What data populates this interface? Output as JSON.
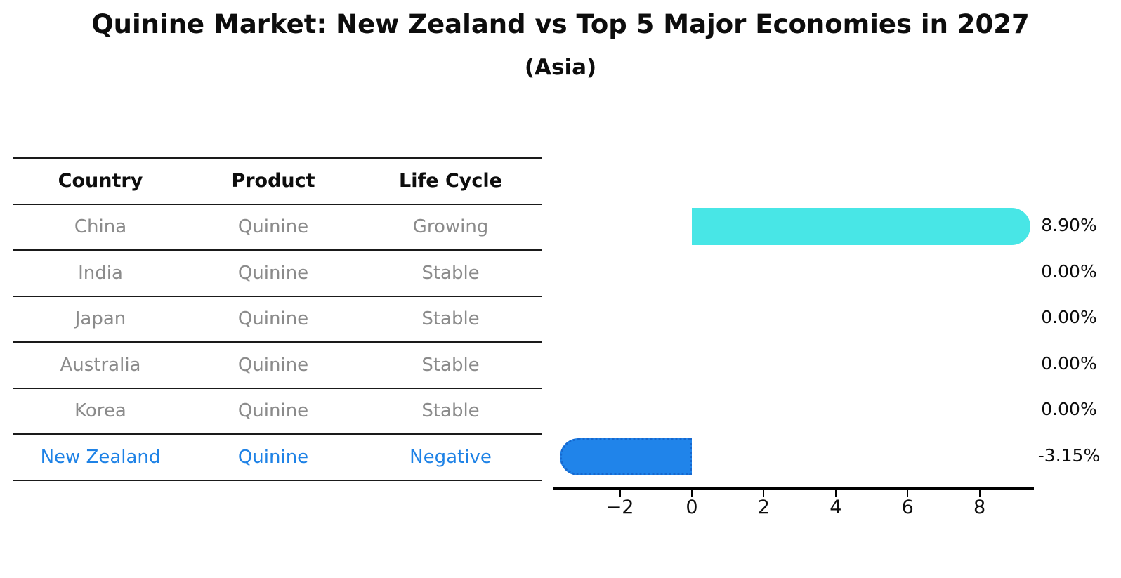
{
  "header": {
    "title": "Quinine Market: New Zealand vs Top 5 Major Economies in 2027",
    "subtitle": "(Asia)"
  },
  "table": {
    "columns": [
      "Country",
      "Product",
      "Life Cycle"
    ],
    "rows": [
      {
        "country": "China",
        "product": "Quinine",
        "life_cycle": "Growing",
        "highlight": false
      },
      {
        "country": "India",
        "product": "Quinine",
        "life_cycle": "Stable",
        "highlight": false
      },
      {
        "country": "Japan",
        "product": "Quinine",
        "life_cycle": "Stable",
        "highlight": false
      },
      {
        "country": "Australia",
        "product": "Quinine",
        "life_cycle": "Stable",
        "highlight": false
      },
      {
        "country": "Korea",
        "product": "Quinine",
        "life_cycle": "Stable",
        "highlight": false
      },
      {
        "country": "New Zealand",
        "product": "Quinine",
        "life_cycle": "Negative",
        "highlight": true
      }
    ]
  },
  "chart_data": {
    "type": "bar",
    "orientation": "horizontal",
    "title": "Quinine Market: New Zealand vs Top 5 Major Economies in 2027",
    "subtitle": "(Asia)",
    "categories": [
      "China",
      "India",
      "Japan",
      "Australia",
      "Korea",
      "New Zealand"
    ],
    "values": [
      8.9,
      0.0,
      0.0,
      0.0,
      0.0,
      -3.15
    ],
    "value_labels": [
      "8.90%",
      "0.00%",
      "0.00%",
      "0.00%",
      "0.00%",
      "-3.15%"
    ],
    "unit": "percent",
    "xticks": [
      -2,
      0,
      2,
      4,
      6,
      8
    ],
    "xtick_labels": [
      "−2",
      "0",
      "2",
      "4",
      "6",
      "8"
    ],
    "xlim": [
      -3.85,
      9.5
    ],
    "grid": false,
    "legend": null,
    "bar_style": {
      "rounded_caps": true,
      "negative_bar_dotted_edge": true
    },
    "colors": {
      "positive_bar": "#48e6e6",
      "negative_bar": "#2084ea",
      "negative_bar_border": "#1668cf",
      "highlight_text": "#1e82e6",
      "table_text": "#8b8b8b",
      "axis": "#000000"
    }
  }
}
